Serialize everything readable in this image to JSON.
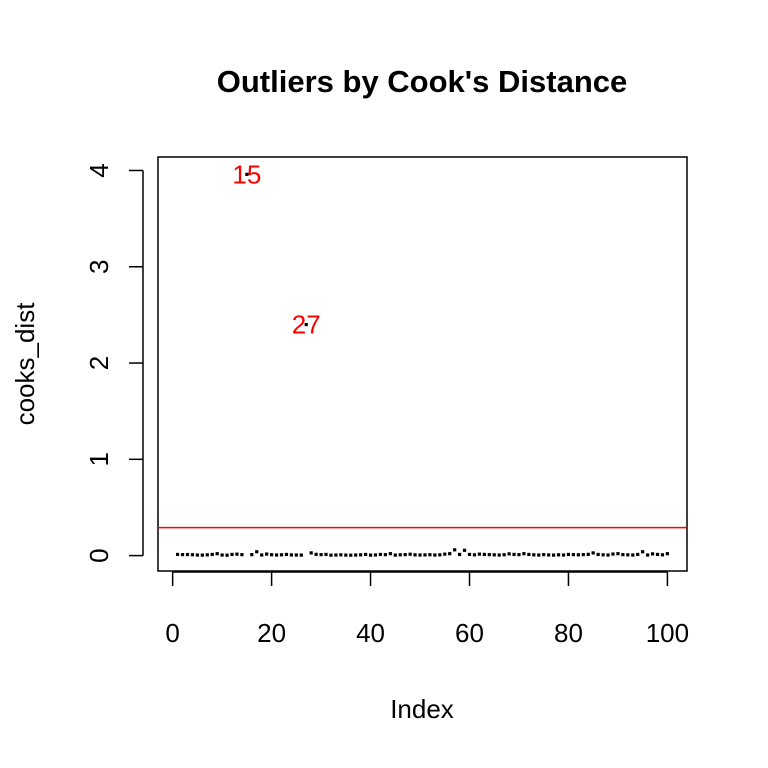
{
  "chart_data": {
    "type": "scatter",
    "title": "Outliers by Cook's Distance",
    "xlabel": "Index",
    "ylabel": "cooks_dist",
    "xlim": [
      -2.96,
      103.96
    ],
    "ylim": [
      -0.16,
      4.14
    ],
    "x_ticks": [
      0,
      20,
      40,
      60,
      80,
      100
    ],
    "y_ticks": [
      0,
      1,
      2,
      3,
      4
    ],
    "grid": false,
    "legend": "none",
    "point_color": "#000000",
    "threshold": {
      "y": 0.29,
      "color": "#ff0000"
    },
    "annotations": [
      {
        "label": "15",
        "x": 15,
        "y": 3.96
      },
      {
        "label": "27",
        "x": 27,
        "y": 2.4
      }
    ],
    "x": [
      1,
      2,
      3,
      4,
      5,
      6,
      7,
      8,
      9,
      10,
      11,
      12,
      13,
      14,
      15,
      16,
      17,
      18,
      19,
      20,
      21,
      22,
      23,
      24,
      25,
      26,
      27,
      28,
      29,
      30,
      31,
      32,
      33,
      34,
      35,
      36,
      37,
      38,
      39,
      40,
      41,
      42,
      43,
      44,
      45,
      46,
      47,
      48,
      49,
      50,
      51,
      52,
      53,
      54,
      55,
      56,
      57,
      58,
      59,
      60,
      61,
      62,
      63,
      64,
      65,
      66,
      67,
      68,
      69,
      70,
      71,
      72,
      73,
      74,
      75,
      76,
      77,
      78,
      79,
      80,
      81,
      82,
      83,
      84,
      85,
      86,
      87,
      88,
      89,
      90,
      91,
      92,
      93,
      94,
      95,
      96,
      97,
      98,
      99,
      100
    ],
    "y": [
      0.012,
      0.01,
      0.011,
      0.009,
      0.006,
      0.005,
      0.008,
      0.012,
      0.02,
      0.006,
      0.004,
      0.012,
      0.015,
      0.01,
      3.96,
      0.01,
      0.04,
      0.006,
      0.016,
      0.009,
      0.006,
      0.008,
      0.012,
      0.007,
      0.006,
      0.005,
      2.4,
      0.028,
      0.013,
      0.01,
      0.012,
      0.004,
      0.006,
      0.008,
      0.005,
      0.004,
      0.006,
      0.008,
      0.012,
      0.005,
      0.007,
      0.012,
      0.01,
      0.02,
      0.005,
      0.008,
      0.01,
      0.014,
      0.008,
      0.006,
      0.007,
      0.009,
      0.006,
      0.008,
      0.015,
      0.02,
      0.06,
      0.012,
      0.055,
      0.012,
      0.008,
      0.015,
      0.012,
      0.01,
      0.008,
      0.006,
      0.009,
      0.018,
      0.012,
      0.01,
      0.02,
      0.012,
      0.008,
      0.006,
      0.01,
      0.007,
      0.005,
      0.008,
      0.006,
      0.012,
      0.01,
      0.008,
      0.01,
      0.013,
      0.028,
      0.012,
      0.008,
      0.006,
      0.016,
      0.02,
      0.01,
      0.008,
      0.006,
      0.012,
      0.04,
      0.006,
      0.018,
      0.012,
      0.008,
      0.02
    ]
  }
}
